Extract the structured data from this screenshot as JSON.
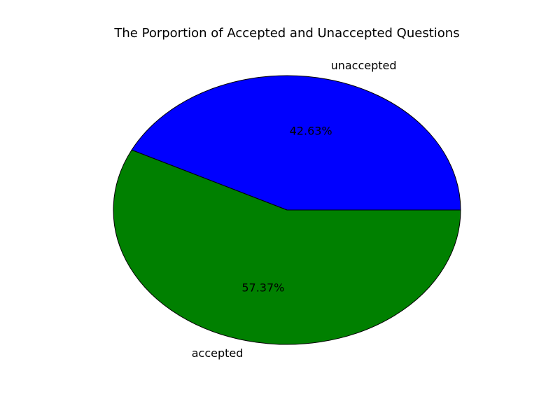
{
  "chart_data": {
    "type": "pie",
    "title": "The Porportion of Accepted and Unaccepted Questions",
    "slices": [
      {
        "label": "unaccepted",
        "value": 42.63,
        "pct_label": "42.63%",
        "color": "#0000ff"
      },
      {
        "label": "accepted",
        "value": 57.37,
        "pct_label": "57.37%",
        "color": "#008000"
      }
    ],
    "start_angle_deg": 0,
    "direction": "counterclockwise",
    "legend": "none"
  }
}
